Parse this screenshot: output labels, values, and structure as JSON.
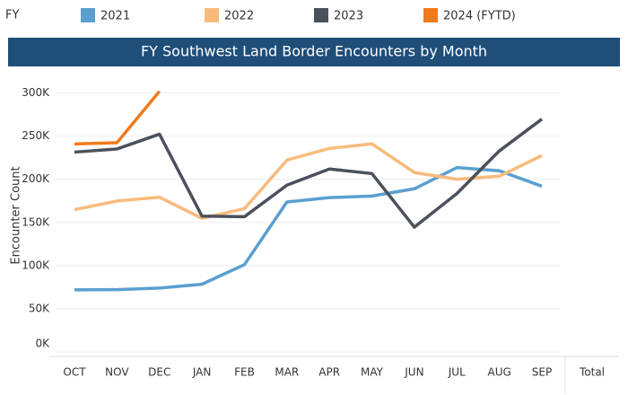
{
  "chart_data": {
    "type": "line",
    "title": "FY Southwest Land Border Encounters by Month",
    "legend_title": "FY",
    "y_label": "Encounter Count",
    "total_label": "Total",
    "categories": [
      "OCT",
      "NOV",
      "DEC",
      "JAN",
      "FEB",
      "MAR",
      "APR",
      "MAY",
      "JUN",
      "JUL",
      "AUG",
      "SEP"
    ],
    "series": [
      {
        "name": "2021",
        "color": "#5b9fd0",
        "values": [
          71929,
          72113,
          73994,
          78414,
          101099,
          173686,
          178795,
          180597,
          189034,
          213593,
          209840,
          192001
        ]
      },
      {
        "name": "2022",
        "color": "#f8bb7c",
        "values": [
          164837,
          174845,
          179253,
          154874,
          166010,
          222239,
          235785,
          241136,
          207834,
          200162,
          203598,
          227547
        ]
      },
      {
        "name": "2023",
        "color": "#4a515c",
        "values": [
          231529,
          235173,
          252315,
          157358,
          156630,
          193249,
          211992,
          206690,
          144556,
          183503,
          232972,
          269735
        ]
      },
      {
        "name": "2024 (FYTD)",
        "color": "#ef7b1c",
        "values": [
          240988,
          242418,
          301983,
          null,
          null,
          null,
          null,
          null,
          null,
          null,
          null,
          null
        ]
      }
    ],
    "ylim": [
      0,
      310000
    ],
    "yticks": [
      {
        "value": 0,
        "label": "0K"
      },
      {
        "value": 50000,
        "label": "50K"
      },
      {
        "value": 100000,
        "label": "100K"
      },
      {
        "value": 150000,
        "label": "150K"
      },
      {
        "value": 200000,
        "label": "200K"
      },
      {
        "value": 250000,
        "label": "250K"
      },
      {
        "value": 300000,
        "label": "300K"
      }
    ],
    "grid": true
  }
}
